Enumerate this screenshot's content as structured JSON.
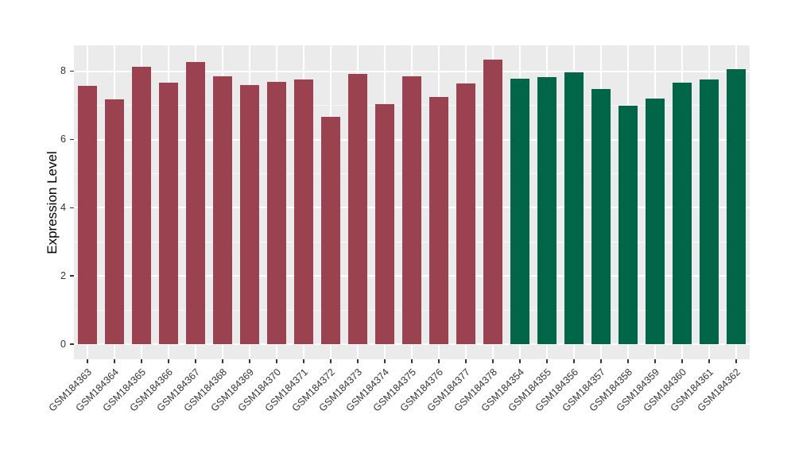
{
  "chart_data": {
    "type": "bar",
    "title": "",
    "xlabel": "",
    "ylabel": "Expression Level",
    "legend": "none",
    "grid": true,
    "panel_background": "#EBEBEB",
    "gridline_color": "#FFFFFF",
    "tick_color": "#333333",
    "ylim": [
      -0.44,
      8.76
    ],
    "yticks": [
      0,
      2,
      4,
      6,
      8
    ],
    "yticks_minor": [
      1,
      3,
      5,
      7
    ],
    "categories": [
      "GSM184363",
      "GSM184364",
      "GSM184365",
      "GSM184366",
      "GSM184367",
      "GSM184368",
      "GSM184369",
      "GSM184370",
      "GSM184371",
      "GSM184372",
      "GSM184373",
      "GSM184374",
      "GSM184375",
      "GSM184376",
      "GSM184377",
      "GSM184378",
      "GSM184354",
      "GSM184355",
      "GSM184356",
      "GSM184357",
      "GSM184358",
      "GSM184359",
      "GSM184360",
      "GSM184361",
      "GSM184362"
    ],
    "values": [
      7.57,
      7.18,
      8.13,
      7.67,
      8.27,
      7.85,
      7.6,
      7.69,
      7.76,
      6.66,
      7.92,
      7.03,
      7.85,
      7.25,
      7.65,
      8.34,
      7.78,
      7.84,
      7.96,
      7.47,
      7.0,
      7.21,
      7.67,
      7.75,
      8.06
    ],
    "groups": [
      "maroon",
      "maroon",
      "maroon",
      "maroon",
      "maroon",
      "maroon",
      "maroon",
      "maroon",
      "maroon",
      "maroon",
      "maroon",
      "maroon",
      "maroon",
      "maroon",
      "maroon",
      "maroon",
      "green",
      "green",
      "green",
      "green",
      "green",
      "green",
      "green",
      "green",
      "green"
    ],
    "group_colors": {
      "maroon": "#9B4250",
      "green": "#006647"
    }
  }
}
